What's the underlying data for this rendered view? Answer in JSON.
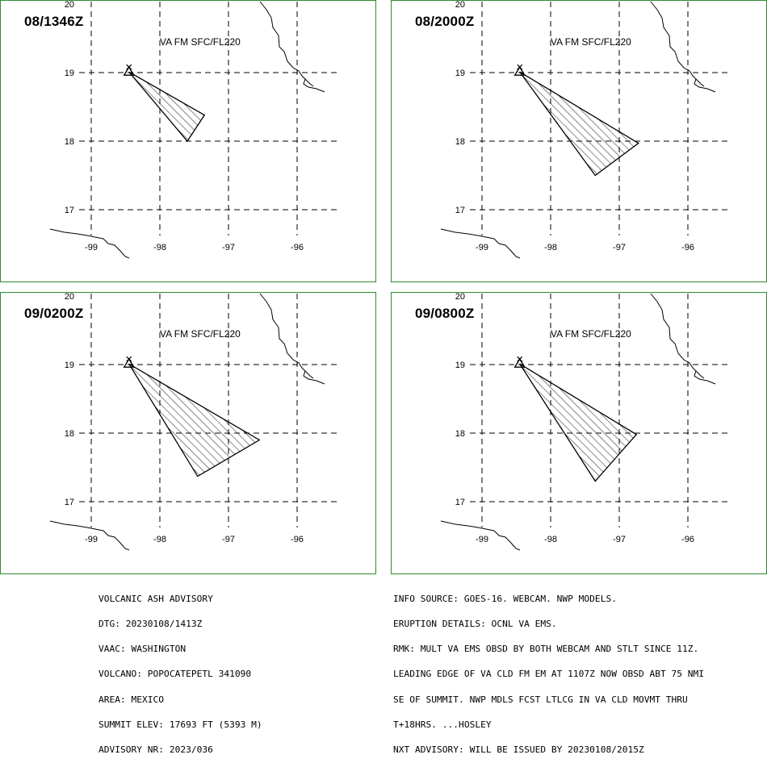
{
  "panels": [
    {
      "time": "08/1346Z",
      "level": "VA FM SFC/FL220",
      "cloud": [
        [
          -98.45,
          19.01
        ],
        [
          -97.35,
          18.38
        ],
        [
          -97.6,
          18.0
        ]
      ]
    },
    {
      "time": "08/2000Z",
      "level": "VA FM SFC/FL220",
      "cloud": [
        [
          -98.45,
          19.01
        ],
        [
          -96.72,
          17.97
        ],
        [
          -97.35,
          17.5
        ]
      ]
    },
    {
      "time": "09/0200Z",
      "level": "VA FM SFC/FL220",
      "cloud": [
        [
          -98.45,
          19.01
        ],
        [
          -96.55,
          17.9
        ],
        [
          -97.45,
          17.37
        ]
      ]
    },
    {
      "time": "09/0800Z",
      "level": "VA FM SFC/FL220",
      "cloud": [
        [
          -98.45,
          19.01
        ],
        [
          -96.75,
          17.98
        ],
        [
          -97.35,
          17.3
        ]
      ]
    }
  ],
  "grid": {
    "lon_ticks": [
      -99,
      -98,
      -97,
      -96
    ],
    "lat_ticks": [
      17,
      18,
      19,
      20
    ],
    "lon_labels": [
      "-99",
      "-98",
      "-97",
      "-96"
    ],
    "lat_labels": [
      "17",
      "18",
      "19",
      "20"
    ]
  },
  "colors": {
    "frame": "#2e8b2e",
    "line": "#000000",
    "background": "#ffffff"
  },
  "advisory_left": [
    "VOLCANIC ASH ADVISORY",
    "DTG: 20230108/1413Z",
    "VAAC: WASHINGTON",
    "VOLCANO: POPOCATEPETL 341090",
    "AREA: MEXICO",
    "SUMMIT ELEV: 17693 FT (5393 M)",
    "ADVISORY NR: 2023/036"
  ],
  "advisory_right": [
    "INFO SOURCE: GOES-16. WEBCAM. NWP MODELS.",
    "ERUPTION DETAILS: OCNL VA EMS.",
    "RMK: MULT VA EMS OBSD BY BOTH WEBCAM AND STLT SINCE 11Z.",
    "LEADING EDGE OF VA CLD FM EM AT 1107Z NOW OBSD ABT 75 NMI",
    "SE OF SUMMIT. NWP MDLS FCST LTLCG IN VA CLD MOVMT THRU",
    "T+18HRS. ...HOSLEY",
    "NXT ADVISORY: WILL BE ISSUED BY 20230108/2015Z"
  ]
}
